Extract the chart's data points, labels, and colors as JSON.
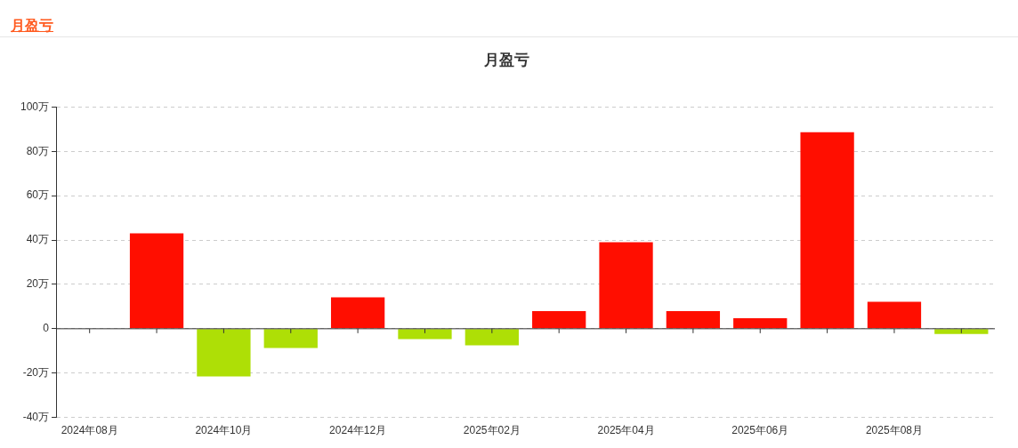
{
  "chart_data": {
    "type": "bar",
    "title": "月盈亏",
    "annotations": [
      "月盈亏"
    ],
    "categories": [
      "2024年08月",
      null,
      "2024年10月",
      null,
      "2024年12月",
      null,
      "2025年02月",
      null,
      "2025年04月",
      null,
      "2025年06月",
      null,
      "2025年08月",
      null
    ],
    "values": [
      0,
      43,
      -21.5,
      -8.7,
      14.2,
      -4.7,
      -7.5,
      7.9,
      39,
      7.9,
      4.7,
      88.6,
      12.2,
      -2.4
    ],
    "colors": [
      "#ff0e00",
      "#ff0e00",
      "#aedf06",
      "#aedf06",
      "#ff0e00",
      "#aedf06",
      "#aedf06",
      "#ff0e00",
      "#ff0e00",
      "#ff0e00",
      "#ff0e00",
      "#ff0e00",
      "#ff0e00",
      "#aedf06"
    ],
    "ylim": [
      -40,
      100
    ],
    "yticks": [
      {
        "value": -40,
        "label": "-40万"
      },
      {
        "value": -20,
        "label": "-20万"
      },
      {
        "value": 0,
        "label": "0"
      },
      {
        "value": 20,
        "label": "20万"
      },
      {
        "value": 40,
        "label": "40万"
      },
      {
        "value": 60,
        "label": "60万"
      },
      {
        "value": 80,
        "label": "80万"
      },
      {
        "value": 100,
        "label": "100万"
      }
    ],
    "grid": "y",
    "legend": false
  }
}
